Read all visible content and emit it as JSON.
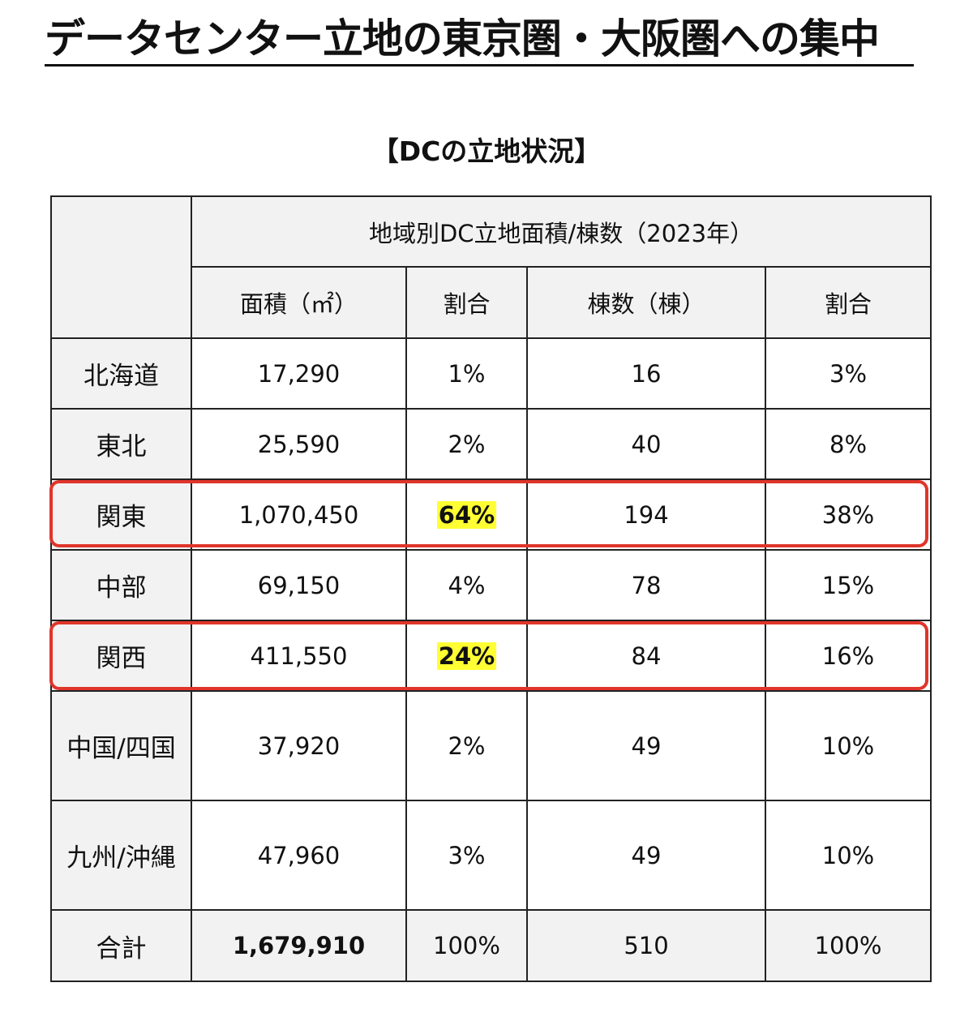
{
  "title": "データセンター立地の東京圏・大阪圏への集中",
  "section_title": "【DCの立地状況】",
  "table": {
    "group_header": "地域別DC立地面積/棟数（2023年）",
    "columns": [
      "面積（㎡）",
      "割合",
      "棟数（棟）",
      "割合"
    ],
    "rows": [
      {
        "region": "北海道",
        "area": "17,290",
        "area_share": "1%",
        "buildings": "16",
        "building_share": "3%"
      },
      {
        "region": "東北",
        "area": "25,590",
        "area_share": "2%",
        "buildings": "40",
        "building_share": "8%"
      },
      {
        "region": "関東",
        "area": "1,070,450",
        "area_share": "64%",
        "buildings": "194",
        "building_share": "38%"
      },
      {
        "region": "中部",
        "area": "69,150",
        "area_share": "4%",
        "buildings": "78",
        "building_share": "15%"
      },
      {
        "region": "関西",
        "area": "411,550",
        "area_share": "24%",
        "buildings": "84",
        "building_share": "16%"
      },
      {
        "region": "中国/四国",
        "area": "37,920",
        "area_share": "2%",
        "buildings": "49",
        "building_share": "10%"
      },
      {
        "region": "九州/沖縄",
        "area": "47,960",
        "area_share": "3%",
        "buildings": "49",
        "building_share": "10%"
      }
    ],
    "total": {
      "region": "合計",
      "area": "1,679,910",
      "area_share": "100%",
      "buildings": "510",
      "building_share": "100%"
    }
  },
  "colors": {
    "highlight_fill": "#ffff33",
    "emphasis_border": "#e0352b",
    "header_background": "#f2f2f2"
  }
}
